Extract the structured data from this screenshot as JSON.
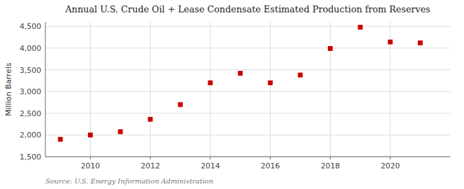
{
  "chart_data": {
    "type": "scatter",
    "title": "Annual U.S. Crude Oil + Lease Condensate Estimated Production from Reserves",
    "ylabel": "Million Barrels",
    "annotations": [
      "Source: U.S. Energy Information Administration"
    ],
    "x": [
      2009,
      2010,
      2011,
      2012,
      2013,
      2014,
      2015,
      2016,
      2017,
      2018,
      2019,
      2020,
      2021
    ],
    "values": [
      1900,
      2000,
      2075,
      2360,
      2700,
      3200,
      3420,
      3200,
      3380,
      3990,
      4480,
      4140,
      4120
    ],
    "color": "#cc0000",
    "marker": "square",
    "xlim": [
      2008.5,
      2022
    ],
    "xticks": [
      2010,
      2012,
      2014,
      2016,
      2018,
      2020
    ],
    "ylim": [
      1500,
      4600
    ],
    "yticks": [
      {
        "value": 1500,
        "label": "1,500"
      },
      {
        "value": 2000,
        "label": "2,000"
      },
      {
        "value": 2500,
        "label": "2,500"
      },
      {
        "value": 3000,
        "label": "3,000"
      },
      {
        "value": 3500,
        "label": "3,500"
      },
      {
        "value": 4000,
        "label": "4,000"
      },
      {
        "value": 4500,
        "label": "4,500"
      }
    ],
    "grid": true
  }
}
